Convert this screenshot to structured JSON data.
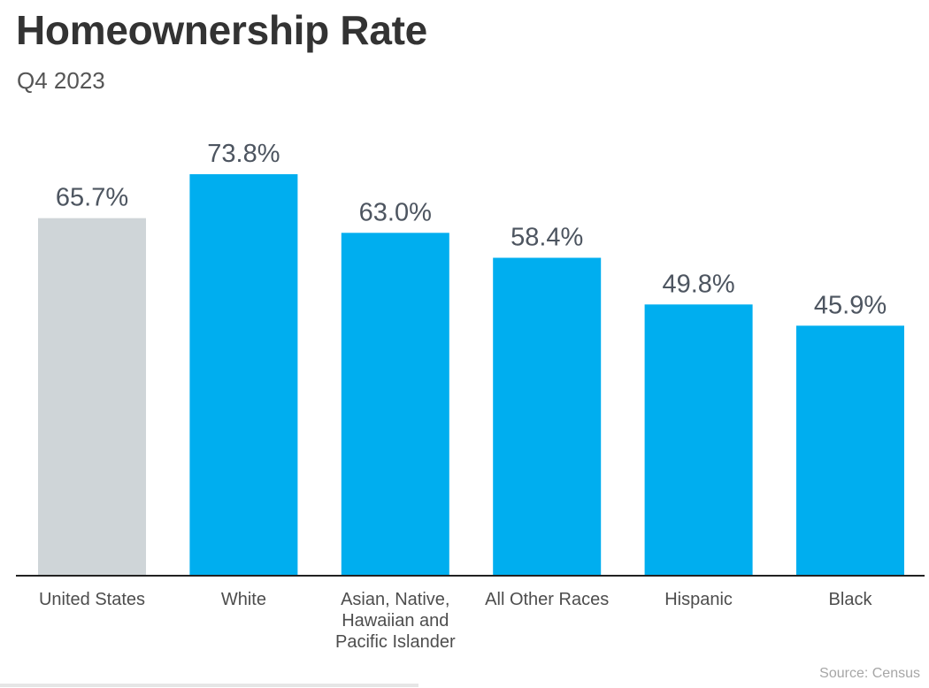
{
  "chart_data": {
    "type": "bar",
    "title": "Homeownership Rate",
    "subtitle": "Q4 2023",
    "categories": [
      [
        "United States"
      ],
      [
        "White"
      ],
      [
        "Asian, Native,",
        "Hawaiian and",
        "Pacific Islander"
      ],
      [
        "All Other Races"
      ],
      [
        "Hispanic"
      ],
      [
        "Black"
      ]
    ],
    "values": [
      65.7,
      73.8,
      63.0,
      58.4,
      49.8,
      45.9
    ],
    "value_labels": [
      "65.7%",
      "73.8%",
      "63.0%",
      "58.4%",
      "49.8%",
      "45.9%"
    ],
    "ylim": [
      0,
      73.8
    ],
    "grid": false,
    "legend": false,
    "colors": [
      "#cfd5d8",
      "#00aeef",
      "#00aeef",
      "#00aeef",
      "#00aeef",
      "#00aeef"
    ],
    "source": "Source: Census"
  },
  "colors": {
    "title": "#333333",
    "subtitle": "#555555",
    "axis": "#222222",
    "category_label": "#4d4d4d",
    "value_label": "#4d5560",
    "source": "#a6a6a6"
  }
}
